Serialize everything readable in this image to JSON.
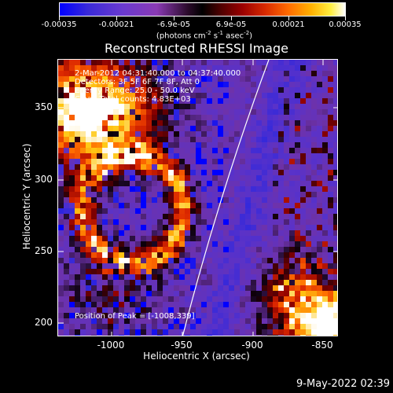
{
  "colorbar": {
    "ticks": [
      "-0.00035",
      "-0.00021",
      "-6.9e-05",
      "6.9e-05",
      "0.00021",
      "0.00035"
    ],
    "unit_main": "(photons cm",
    "unit_exp1": "-2",
    "unit_s": " s",
    "unit_exp2": "-1",
    "unit_asec": " asec",
    "unit_exp3": "-2",
    "unit_close": ")"
  },
  "plot": {
    "title": "Reconstructed RHESSI Image",
    "xlabel": "Heliocentric X (arcsec)",
    "ylabel": "Heliocentric Y (arcsec)",
    "xticks": [
      "-1000",
      "-950",
      "-900",
      "-850"
    ],
    "yticks": [
      "200",
      "250",
      "300",
      "350"
    ],
    "legend": [
      "2-Mar-2012 04:31:40.000 to 04:37:40.000",
      "Detectors: 3F 5F 6F 7F 8F, Att 0",
      "Energy Range: 25.0 - 50.0 keV",
      "Clean     Total counts: 4.83E+03"
    ],
    "peak": "Position of Peak = [-1008,339]"
  },
  "footer": {
    "timestamp": "9-May-2022 02:39"
  },
  "colors": {
    "background": "#000000",
    "text": "#ffffff",
    "limb": "#ffffff"
  }
}
